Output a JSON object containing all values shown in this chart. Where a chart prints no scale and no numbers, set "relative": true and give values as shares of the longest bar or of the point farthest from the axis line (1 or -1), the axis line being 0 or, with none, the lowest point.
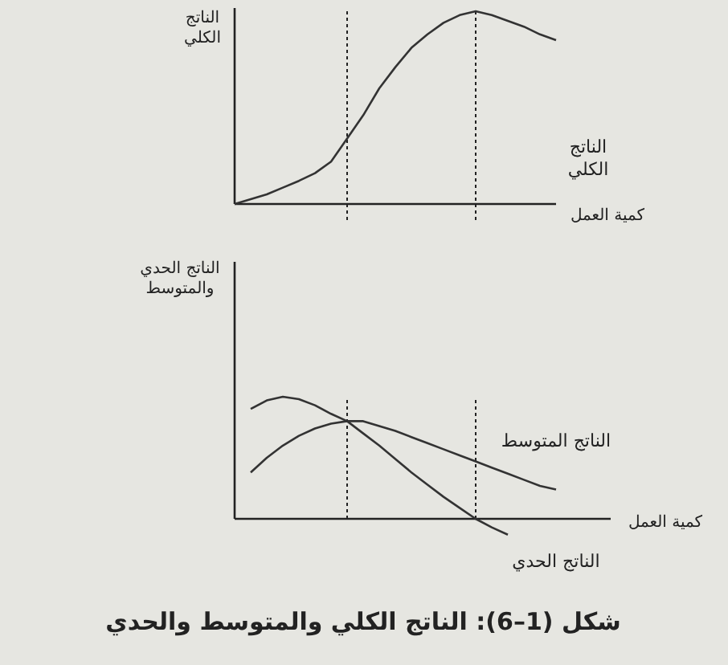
{
  "chart_data": [
    {
      "type": "line",
      "relative": true,
      "ylabel": "الناتج الكلي",
      "xlabel": "كمية العمل",
      "categories": [
        null,
        null,
        null,
        null,
        null,
        null,
        null,
        null,
        null,
        null,
        null,
        null,
        null,
        null,
        null,
        null,
        null,
        null,
        null,
        null,
        null
      ],
      "series": [
        {
          "name": "الناتج الكلي",
          "color": "#333333",
          "values": [
            0,
            0.025,
            0.05,
            0.085,
            0.12,
            0.16,
            0.22,
            0.34,
            0.46,
            0.6,
            0.71,
            0.81,
            0.88,
            0.94,
            0.98,
            1,
            0.98,
            0.95,
            0.92,
            0.88,
            0.85
          ]
        }
      ]
    },
    {
      "type": "line",
      "relative": true,
      "ylabel": "الناتج الحدي والمتوسط",
      "xlabel": "كمية العمل",
      "categories": [
        null,
        null,
        null,
        null,
        null,
        null,
        null,
        null,
        null,
        null,
        null,
        null,
        null,
        null,
        null,
        null,
        null,
        null,
        null,
        null,
        null,
        null,
        null,
        null
      ],
      "series": [
        {
          "name": "الناتج المتوسط",
          "color": "#333333",
          "values": [
            null,
            0.38,
            0.5,
            0.6,
            0.68,
            0.74,
            0.78,
            0.8,
            0.8,
            0.76,
            0.72,
            0.67,
            0.62,
            0.57,
            0.52,
            0.47,
            0.42,
            0.37,
            0.32,
            0.27,
            0.24,
            null,
            null,
            null
          ]
        },
        {
          "name": "الناتج الحدي",
          "color": "#333333",
          "values": [
            null,
            0.9,
            0.97,
            1,
            0.98,
            0.93,
            0.86,
            0.8,
            0.7,
            0.6,
            0.49,
            0.38,
            0.28,
            0.18,
            0.09,
            0,
            -0.07,
            -0.13,
            null,
            null,
            null,
            null,
            null,
            null
          ]
        }
      ],
      "annotations": [
        "شكل (1–6): الناتج الكلي والمتوسط والحدي"
      ]
    }
  ]
}
